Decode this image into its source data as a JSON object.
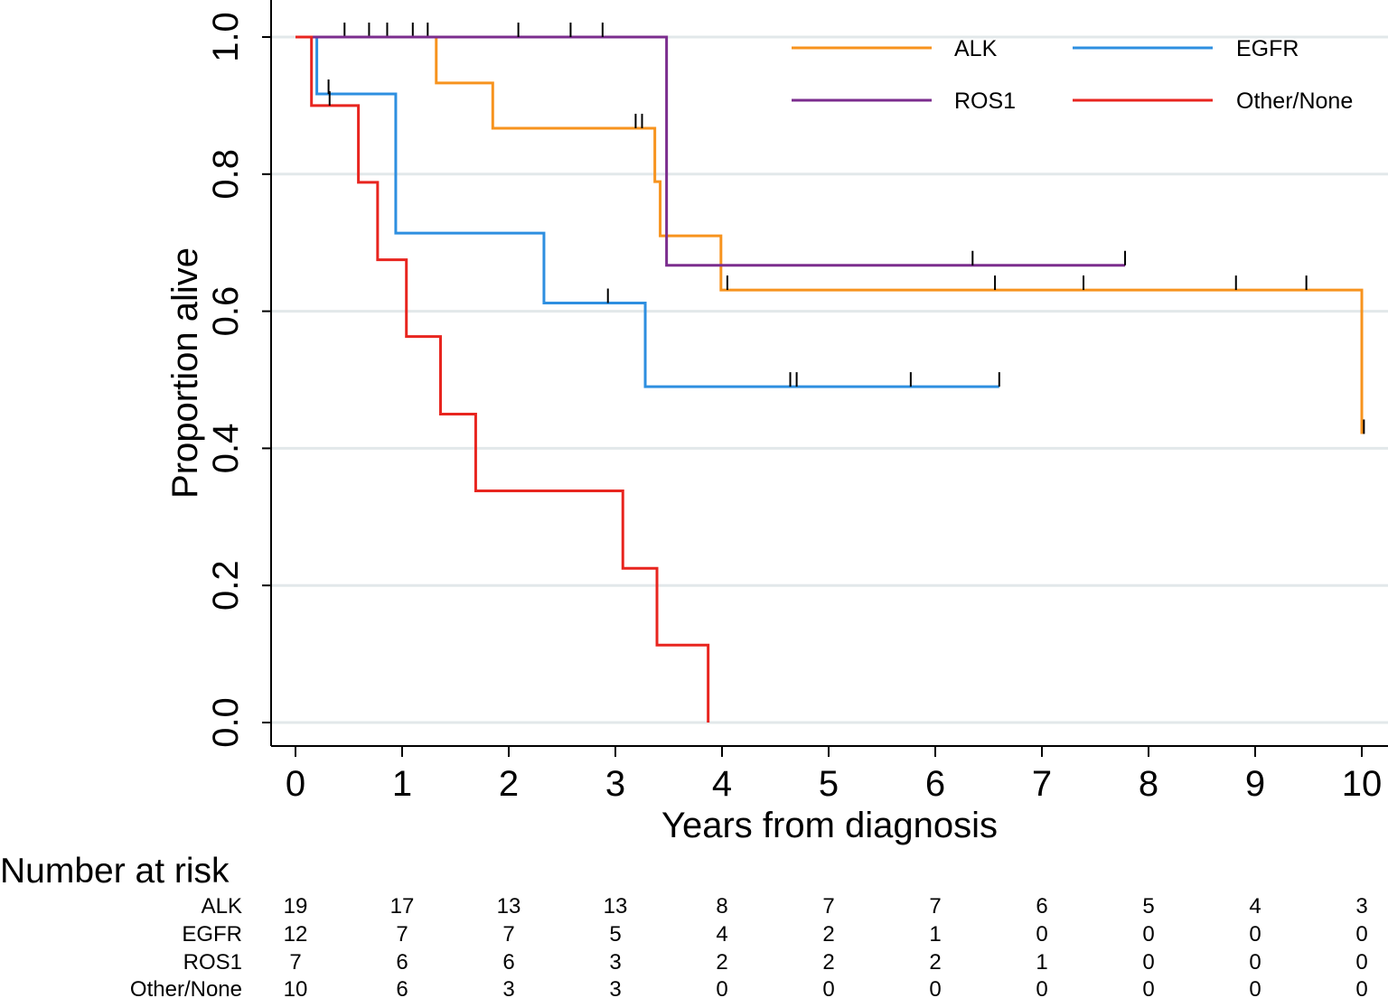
{
  "chart_data": {
    "type": "line",
    "subtype": "kaplan-meier",
    "xlabel": "Years from diagnosis",
    "ylabel": "Proportion alive",
    "xlim": [
      0,
      10
    ],
    "ylim": [
      0,
      1
    ],
    "xticks": [
      0,
      1,
      2,
      3,
      4,
      5,
      6,
      7,
      8,
      9,
      10
    ],
    "yticks": [
      "0.0",
      "0.2",
      "0.4",
      "0.6",
      "0.8",
      "1.0"
    ],
    "grid": "horizontal",
    "legend_position": "top-right",
    "series": [
      {
        "name": "ALK",
        "color": "#F7931E",
        "steps": [
          [
            0,
            1.0
          ],
          [
            1.32,
            0.933
          ],
          [
            1.85,
            0.867
          ],
          [
            3.37,
            0.789
          ],
          [
            3.42,
            0.71
          ],
          [
            3.99,
            0.631
          ],
          [
            10.0,
            0.421
          ]
        ],
        "end": 10.0,
        "censor": [
          0.46,
          0.69,
          0.86,
          1.1,
          1.24,
          3.19,
          3.25,
          4.05,
          6.56,
          7.39,
          8.82,
          9.48,
          10.02
        ]
      },
      {
        "name": "EGFR",
        "color": "#2E8FE0",
        "steps": [
          [
            0,
            1.0
          ],
          [
            0.2,
            0.917
          ],
          [
            0.94,
            0.714
          ],
          [
            2.33,
            0.612
          ],
          [
            3.28,
            0.49
          ]
        ],
        "end": 6.6,
        "censor": [
          0.31,
          2.93,
          4.64,
          4.7,
          5.77,
          6.6
        ]
      },
      {
        "name": "ROS1",
        "color": "#7B2D8E",
        "steps": [
          [
            0,
            1.0
          ],
          [
            3.48,
            0.667
          ]
        ],
        "end": 7.78,
        "censor": [
          2.09,
          2.58,
          2.88,
          6.35,
          7.78
        ]
      },
      {
        "name": "Other/None",
        "color": "#E8251F",
        "steps": [
          [
            0,
            1.0
          ],
          [
            0.15,
            0.9
          ],
          [
            0.59,
            0.788
          ],
          [
            0.77,
            0.675
          ],
          [
            1.04,
            0.563
          ],
          [
            1.36,
            0.45
          ],
          [
            1.69,
            0.338
          ],
          [
            3.07,
            0.225
          ],
          [
            3.39,
            0.113
          ],
          [
            3.87,
            0.0
          ]
        ],
        "end": 3.87,
        "censor": [
          0.32
        ]
      }
    ],
    "risk_table": {
      "title": "Number at risk",
      "times": [
        0,
        1,
        2,
        3,
        4,
        5,
        6,
        7,
        8,
        9,
        10
      ],
      "rows": [
        {
          "label": "ALK",
          "counts": [
            "19",
            "17",
            "13",
            "13",
            "8",
            "7",
            "7",
            "6",
            "5",
            "4",
            "3"
          ]
        },
        {
          "label": "EGFR",
          "counts": [
            "12",
            "7",
            "7",
            "5",
            "4",
            "2",
            "1",
            "0",
            "0",
            "0",
            "0"
          ]
        },
        {
          "label": "ROS1",
          "counts": [
            "7",
            "6",
            "6",
            "3",
            "2",
            "2",
            "2",
            "1",
            "0",
            "0",
            "0"
          ]
        },
        {
          "label": "Other/None",
          "counts": [
            "10",
            "6",
            "3",
            "3",
            "0",
            "0",
            "0",
            "0",
            "0",
            "0",
            "0"
          ]
        }
      ]
    }
  }
}
